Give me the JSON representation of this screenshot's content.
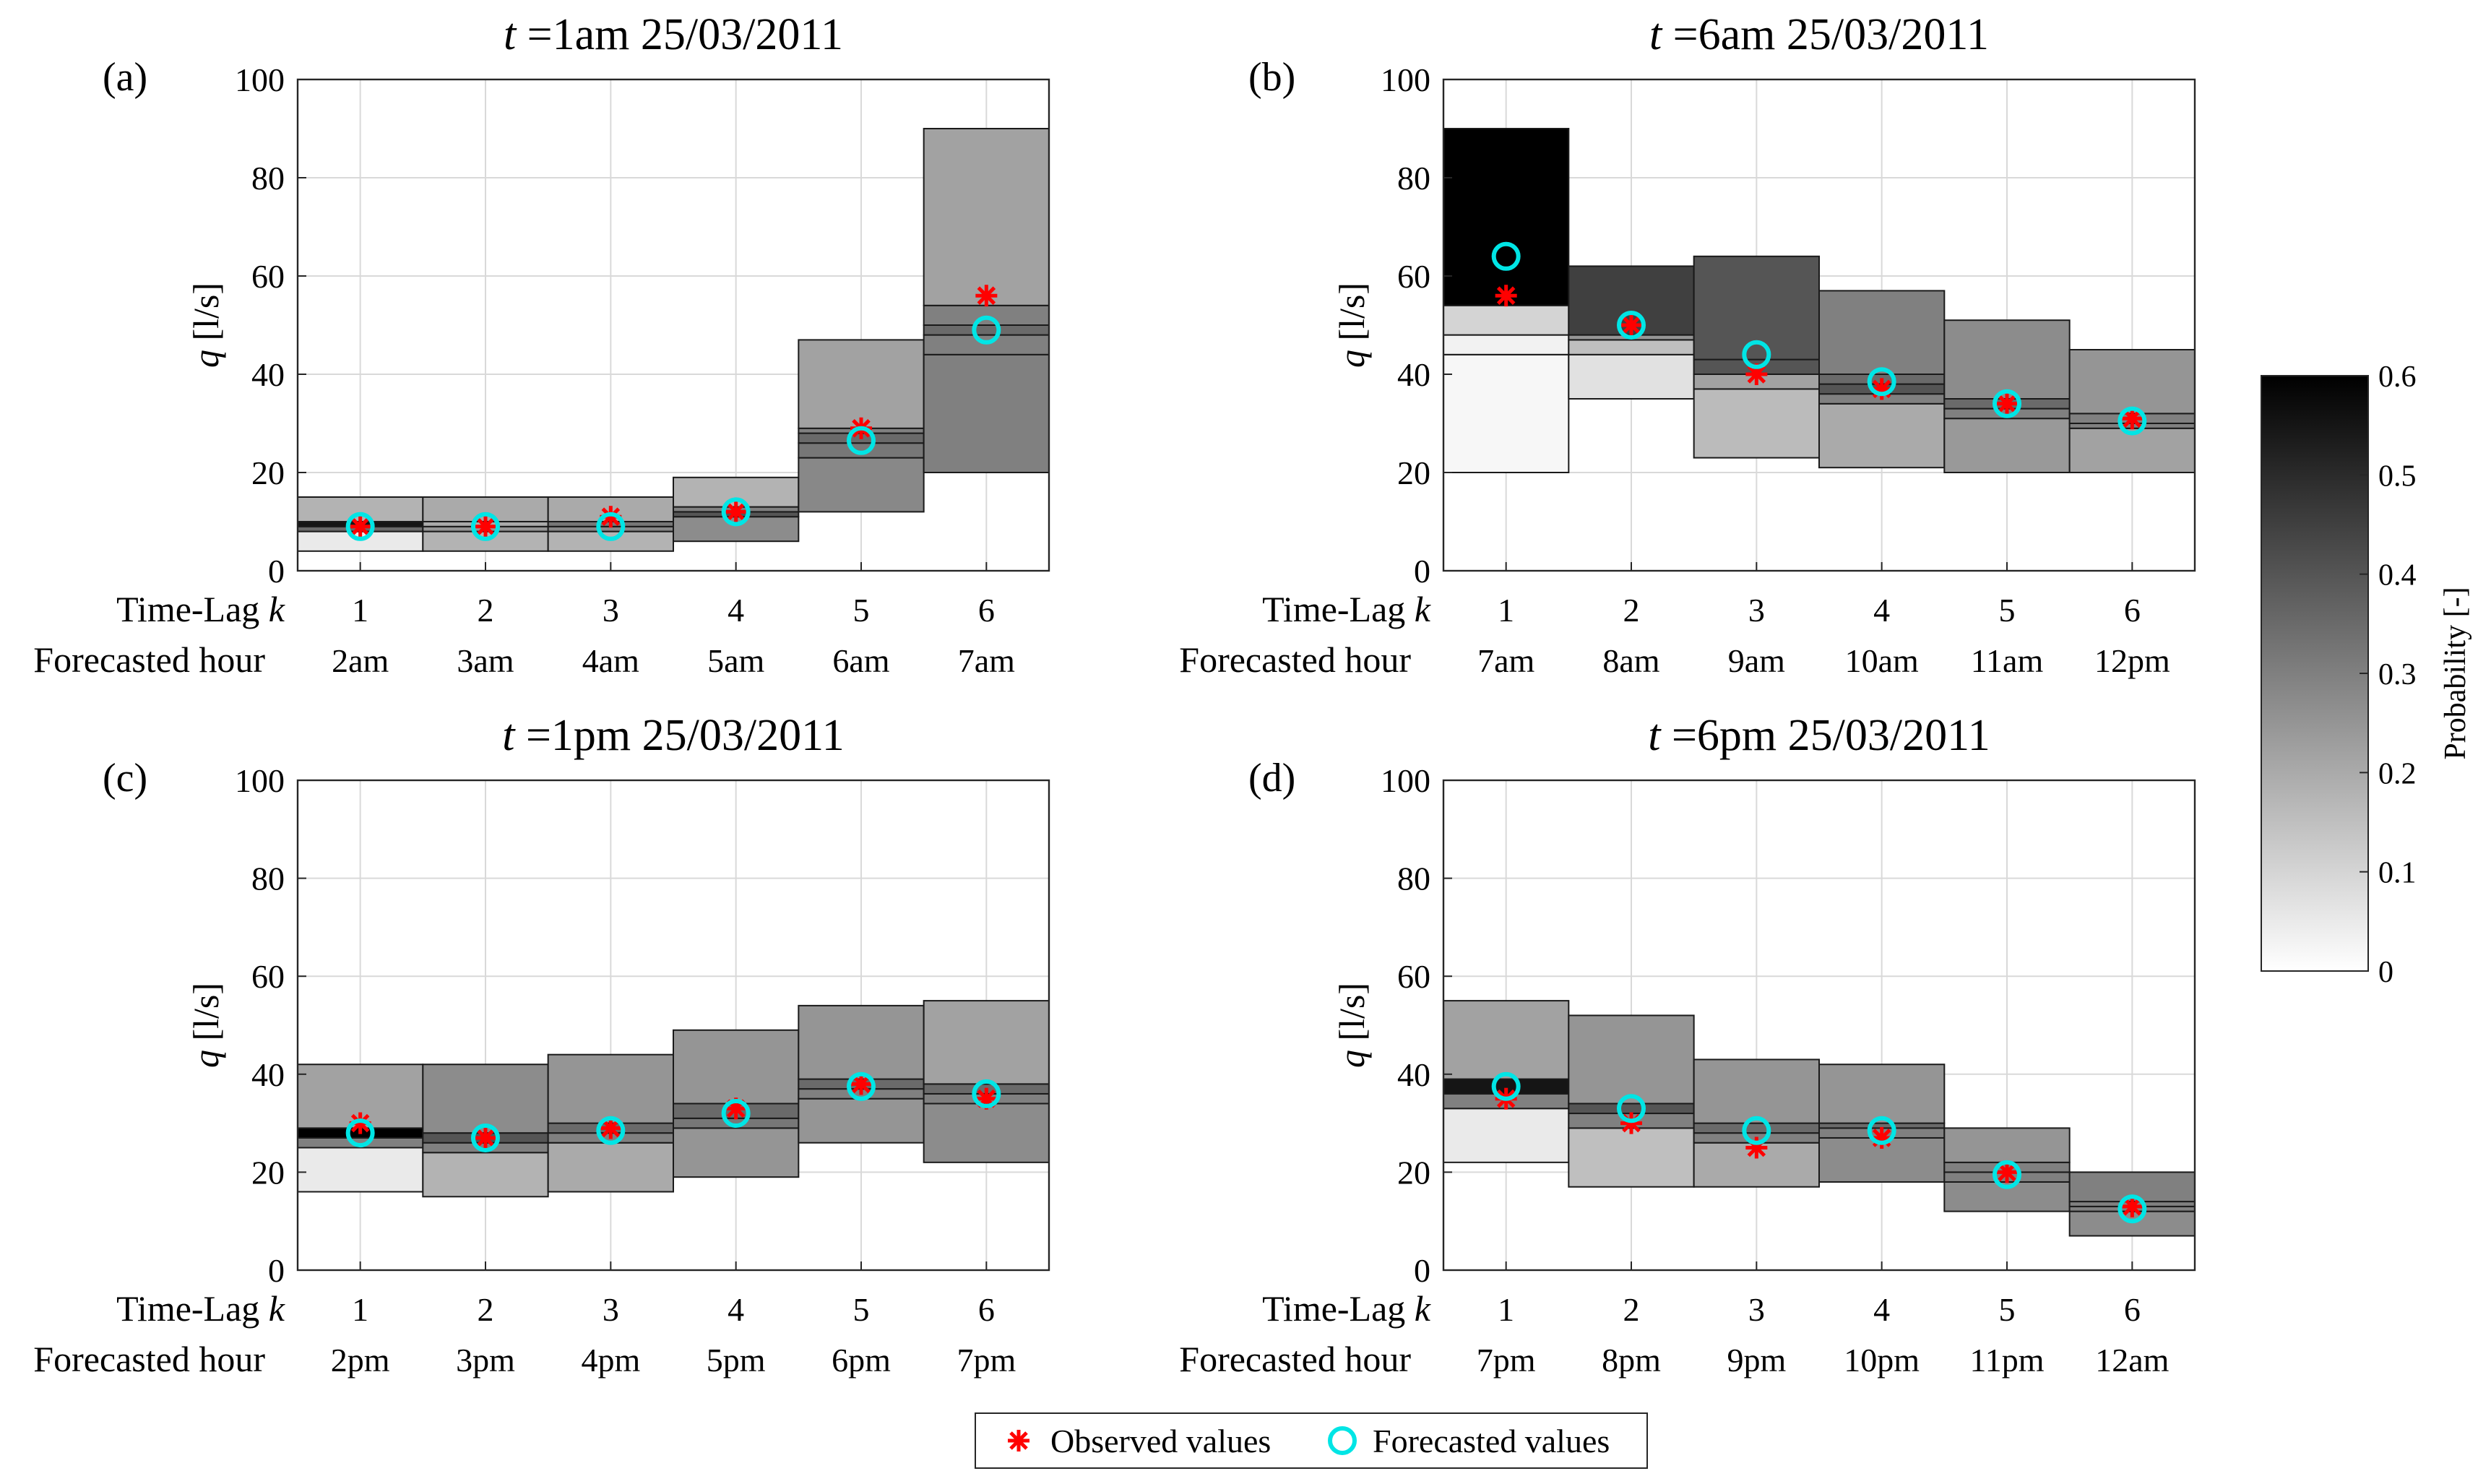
{
  "chart_data": [
    {
      "type": "bar",
      "panel": "(a)",
      "title_var": "t",
      "title_rest": " =1am 25/03/2011",
      "ylabel_var": "q",
      "ylabel_rest": " [l/s]",
      "ylim": [
        0,
        100
      ],
      "yticks": [
        0,
        20,
        40,
        60,
        80,
        100
      ],
      "row1_label": "Time-Lag",
      "row1_var": "k",
      "row2_label": "Forecasted hour",
      "categories": [
        "1",
        "2",
        "3",
        "4",
        "5",
        "6"
      ],
      "hours": [
        "2am",
        "3am",
        "4am",
        "5am",
        "6am",
        "7am"
      ],
      "bins": [
        [
          [
            4,
            8,
            0.05
          ],
          [
            8,
            9,
            0.35
          ],
          [
            9,
            10,
            0.55
          ],
          [
            10,
            15,
            0.18
          ]
        ],
        [
          [
            4,
            8,
            0.18
          ],
          [
            8,
            9,
            0.25
          ],
          [
            9,
            10,
            0.2
          ],
          [
            10,
            15,
            0.2
          ]
        ],
        [
          [
            4,
            8,
            0.18
          ],
          [
            8,
            9,
            0.28
          ],
          [
            9,
            10,
            0.32
          ],
          [
            10,
            15,
            0.2
          ]
        ],
        [
          [
            6,
            11,
            0.27
          ],
          [
            11,
            12,
            0.4
          ],
          [
            12,
            13,
            0.3
          ],
          [
            13,
            19,
            0.18
          ]
        ],
        [
          [
            12,
            23,
            0.28
          ],
          [
            23,
            26,
            0.32
          ],
          [
            26,
            28,
            0.35
          ],
          [
            28,
            29,
            0.3
          ],
          [
            29,
            47,
            0.22
          ]
        ],
        [
          [
            20,
            44,
            0.3
          ],
          [
            44,
            48,
            0.3
          ],
          [
            48,
            50,
            0.35
          ],
          [
            50,
            54,
            0.3
          ],
          [
            54,
            90,
            0.22
          ]
        ]
      ],
      "observed": [
        9,
        9,
        11,
        12,
        29,
        56
      ],
      "forecasted": [
        9,
        9,
        9,
        12,
        26.5,
        49
      ]
    },
    {
      "type": "bar",
      "panel": "(b)",
      "title_var": "t",
      "title_rest": " =6am 25/03/2011",
      "ylabel_var": "q",
      "ylabel_rest": " [l/s]",
      "ylim": [
        0,
        100
      ],
      "yticks": [
        0,
        20,
        40,
        60,
        80,
        100
      ],
      "row1_label": "Time-Lag",
      "row1_var": "k",
      "row2_label": "Forecasted hour",
      "categories": [
        "1",
        "2",
        "3",
        "4",
        "5",
        "6"
      ],
      "hours": [
        "7am",
        "8am",
        "9am",
        "10am",
        "11am",
        "12pm"
      ],
      "bins": [
        [
          [
            20,
            44,
            0.02
          ],
          [
            44,
            48,
            0.03
          ],
          [
            48,
            54,
            0.1
          ],
          [
            54,
            90,
            0.6
          ]
        ],
        [
          [
            35,
            44,
            0.07
          ],
          [
            44,
            47,
            0.15
          ],
          [
            47,
            48,
            0.25
          ],
          [
            48,
            62,
            0.45
          ]
        ],
        [
          [
            23,
            37,
            0.16
          ],
          [
            37,
            40,
            0.22
          ],
          [
            40,
            43,
            0.4
          ],
          [
            43,
            64,
            0.4
          ]
        ],
        [
          [
            21,
            34,
            0.2
          ],
          [
            34,
            36,
            0.3
          ],
          [
            36,
            38,
            0.4
          ],
          [
            38,
            40,
            0.35
          ],
          [
            40,
            57,
            0.3
          ]
        ],
        [
          [
            20,
            31,
            0.24
          ],
          [
            31,
            33,
            0.3
          ],
          [
            33,
            35,
            0.35
          ],
          [
            35,
            51,
            0.27
          ]
        ],
        [
          [
            20,
            29,
            0.22
          ],
          [
            29,
            30,
            0.3
          ],
          [
            30,
            32,
            0.3
          ],
          [
            32,
            45,
            0.25
          ]
        ]
      ],
      "observed": [
        56,
        50,
        40,
        37,
        34,
        31
      ],
      "forecasted": [
        64,
        50,
        44,
        38.5,
        34,
        30.5
      ]
    },
    {
      "type": "bar",
      "panel": "(c)",
      "title_var": "t",
      "title_rest": " =1pm 25/03/2011",
      "ylabel_var": "q",
      "ylabel_rest": " [l/s]",
      "ylim": [
        0,
        100
      ],
      "yticks": [
        0,
        20,
        40,
        60,
        80,
        100
      ],
      "row1_label": "Time-Lag",
      "row1_var": "k",
      "row2_label": "Forecasted hour",
      "categories": [
        "1",
        "2",
        "3",
        "4",
        "5",
        "6"
      ],
      "hours": [
        "2pm",
        "3pm",
        "4pm",
        "5pm",
        "6pm",
        "7pm"
      ],
      "bins": [
        [
          [
            16,
            25,
            0.05
          ],
          [
            25,
            27,
            0.3
          ],
          [
            27,
            29,
            0.6
          ],
          [
            29,
            42,
            0.22
          ]
        ],
        [
          [
            15,
            24,
            0.18
          ],
          [
            24,
            26,
            0.3
          ],
          [
            26,
            28,
            0.4
          ],
          [
            28,
            42,
            0.27
          ]
        ],
        [
          [
            16,
            26,
            0.2
          ],
          [
            26,
            28,
            0.3
          ],
          [
            28,
            30,
            0.35
          ],
          [
            30,
            44,
            0.25
          ]
        ],
        [
          [
            19,
            29,
            0.25
          ],
          [
            29,
            31,
            0.32
          ],
          [
            31,
            34,
            0.35
          ],
          [
            34,
            49,
            0.25
          ]
        ],
        [
          [
            26,
            35,
            0.25
          ],
          [
            35,
            37,
            0.3
          ],
          [
            37,
            39,
            0.35
          ],
          [
            39,
            54,
            0.25
          ]
        ],
        [
          [
            22,
            34,
            0.27
          ],
          [
            34,
            36,
            0.3
          ],
          [
            36,
            38,
            0.35
          ],
          [
            38,
            55,
            0.22
          ]
        ]
      ],
      "observed": [
        30,
        27,
        29,
        33,
        38,
        35
      ],
      "forecasted": [
        28,
        27,
        28.5,
        32,
        37.5,
        36
      ]
    },
    {
      "type": "bar",
      "panel": "(d)",
      "title_var": "t",
      "title_rest": " =6pm 25/03/2011",
      "ylabel_var": "q",
      "ylabel_rest": " [l/s]",
      "ylim": [
        0,
        100
      ],
      "yticks": [
        0,
        20,
        40,
        60,
        80,
        100
      ],
      "row1_label": "Time-Lag",
      "row1_var": "k",
      "row2_label": "Forecasted hour",
      "categories": [
        "1",
        "2",
        "3",
        "4",
        "5",
        "6"
      ],
      "hours": [
        "7pm",
        "8pm",
        "9pm",
        "10pm",
        "11pm",
        "12am"
      ],
      "bins": [
        [
          [
            22,
            33,
            0.05
          ],
          [
            33,
            36,
            0.3
          ],
          [
            36,
            39,
            0.55
          ],
          [
            39,
            55,
            0.22
          ]
        ],
        [
          [
            17,
            29,
            0.15
          ],
          [
            29,
            32,
            0.3
          ],
          [
            32,
            34,
            0.4
          ],
          [
            34,
            52,
            0.25
          ]
        ],
        [
          [
            17,
            26,
            0.2
          ],
          [
            26,
            28,
            0.3
          ],
          [
            28,
            30,
            0.35
          ],
          [
            30,
            43,
            0.25
          ]
        ],
        [
          [
            18,
            27,
            0.27
          ],
          [
            27,
            29,
            0.3
          ],
          [
            29,
            30,
            0.35
          ],
          [
            30,
            42,
            0.25
          ]
        ],
        [
          [
            12,
            18,
            0.27
          ],
          [
            18,
            20,
            0.3
          ],
          [
            20,
            22,
            0.3
          ],
          [
            22,
            29,
            0.25
          ]
        ],
        [
          [
            7,
            12,
            0.27
          ],
          [
            12,
            13,
            0.3
          ],
          [
            13,
            14,
            0.3
          ],
          [
            14,
            20,
            0.3
          ]
        ]
      ],
      "observed": [
        35,
        30,
        25,
        27,
        20,
        13
      ],
      "forecasted": [
        37.5,
        33,
        28.5,
        28.5,
        19.5,
        12.5
      ]
    }
  ],
  "colorbar": {
    "label": "Probability [-]",
    "ticks": [
      "0",
      "0.1",
      "0.2",
      "0.3",
      "0.4",
      "0.5",
      "0.6"
    ],
    "range": [
      0,
      0.6
    ]
  },
  "legend": {
    "observed_label": "Observed values",
    "forecasted_label": "Forecasted values"
  },
  "colors": {
    "observed": "#ff0000",
    "forecasted": "#00e5e5",
    "grid": "#d9d9d9"
  }
}
